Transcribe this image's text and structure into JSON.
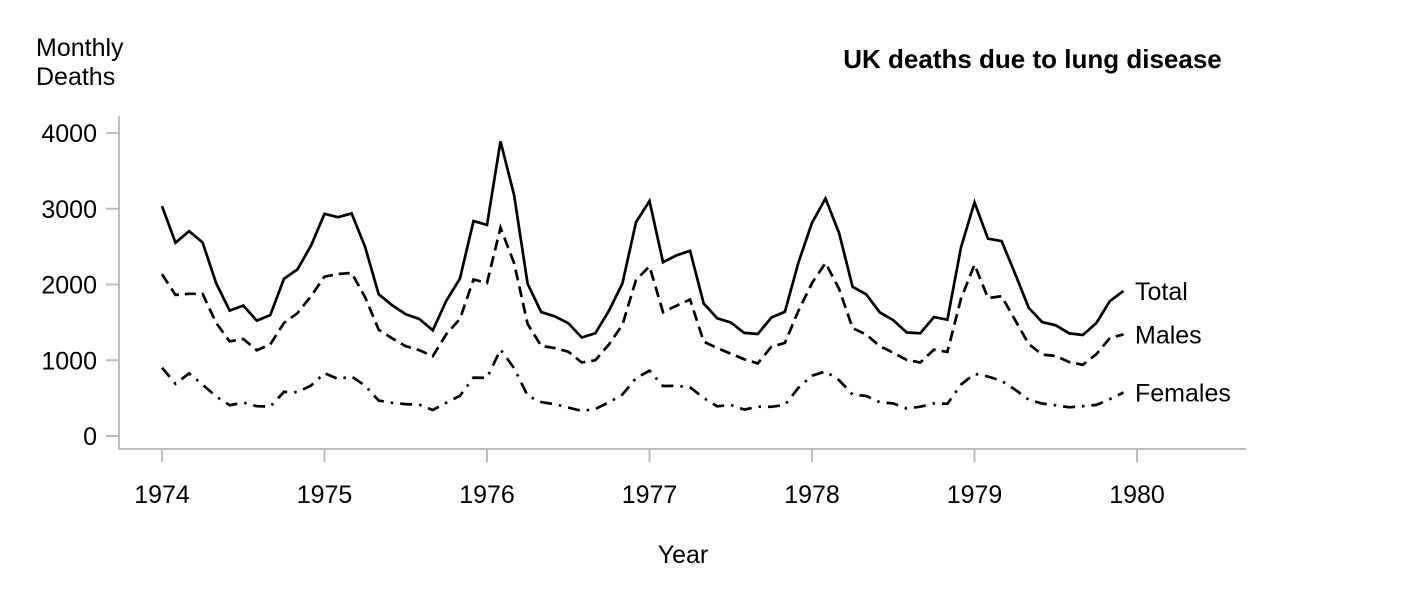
{
  "chart_data": {
    "type": "line",
    "title": "UK deaths due to lung disease",
    "ylabel": "Monthly\nDeaths",
    "xlabel": "Year",
    "x_ticks": [
      1974,
      1975,
      1976,
      1977,
      1978,
      1979,
      1980
    ],
    "y_ticks": [
      0,
      1000,
      2000,
      3000,
      4000
    ],
    "ylim": [
      0,
      4000
    ],
    "xlim": [
      1974,
      1980
    ],
    "grid": false,
    "legend_position": "line-end-labels-right",
    "axis_color": "#bdbdbd",
    "line_color": "#000000",
    "months_per_year": 12,
    "series": [
      {
        "name": "Total",
        "style": "solid",
        "values": [
          3035,
          2552,
          2704,
          2554,
          2014,
          1655,
          1721,
          1524,
          1596,
          2074,
          2199,
          2512,
          2933,
          2889,
          2938,
          2497,
          1870,
          1726,
          1607,
          1545,
          1396,
          1787,
          2076,
          2837,
          2787,
          3891,
          3179,
          2011,
          1636,
          1580,
          1489,
          1300,
          1356,
          1653,
          2013,
          2823,
          3102,
          2294,
          2385,
          2444,
          1748,
          1554,
          1498,
          1361,
          1346,
          1564,
          1640,
          2293,
          2815,
          3137,
          2679,
          1969,
          1870,
          1633,
          1529,
          1366,
          1357,
          1570,
          1535,
          2491,
          3084,
          2605,
          2573,
          2143,
          1693,
          1504,
          1461,
          1354,
          1333,
          1492,
          1781,
          1915
        ]
      },
      {
        "name": "Males",
        "style": "dashed",
        "values": [
          2134,
          1863,
          1877,
          1877,
          1492,
          1249,
          1280,
          1131,
          1209,
          1492,
          1621,
          1846,
          2103,
          2137,
          2153,
          1833,
          1403,
          1288,
          1186,
          1133,
          1053,
          1347,
          1545,
          2066,
          2020,
          2750,
          2283,
          1479,
          1189,
          1160,
          1113,
          970,
          999,
          1208,
          1467,
          2059,
          2240,
          1634,
          1722,
          1801,
          1246,
          1162,
          1087,
          1013,
          959,
          1179,
          1229,
          1655,
          2019,
          2284,
          1942,
          1423,
          1340,
          1187,
          1098,
          1004,
          970,
          1140,
          1110,
          1812,
          2263,
          1820,
          1846,
          1531,
          1215,
          1075,
          1056,
          975,
          940,
          1081,
          1294,
          1341
        ]
      },
      {
        "name": "Females",
        "style": "dashdot",
        "values": [
          901,
          689,
          827,
          677,
          522,
          406,
          441,
          393,
          387,
          582,
          578,
          666,
          830,
          752,
          785,
          664,
          467,
          438,
          421,
          412,
          343,
          440,
          531,
          771,
          767,
          1141,
          896,
          532,
          447,
          420,
          376,
          330,
          357,
          445,
          546,
          764,
          862,
          660,
          663,
          643,
          502,
          392,
          411,
          348,
          387,
          385,
          411,
          638,
          796,
          853,
          737,
          546,
          530,
          446,
          431,
          362,
          387,
          430,
          425,
          679,
          821,
          785,
          727,
          612,
          478,
          429,
          405,
          379,
          393,
          411,
          487,
          574
        ]
      }
    ]
  }
}
